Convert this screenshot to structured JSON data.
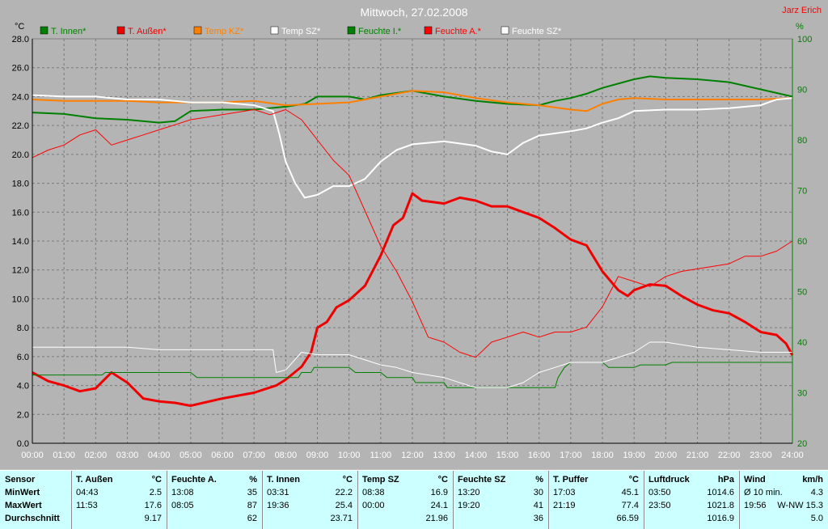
{
  "chart_data": {
    "type": "line",
    "title": "Mittwoch, 27.02.2008",
    "author": "Jarz Erich",
    "y_left_unit": "°C",
    "y_right_unit": "%",
    "ylim_left": [
      0,
      28
    ],
    "ylim_right": [
      20,
      100
    ],
    "y_left_ticks": [
      "0.0",
      "2.0",
      "4.0",
      "6.0",
      "8.0",
      "10.0",
      "12.0",
      "14.0",
      "16.0",
      "18.0",
      "20.0",
      "22.0",
      "24.0",
      "26.0",
      "28.0"
    ],
    "y_right_ticks": [
      "20",
      "30",
      "40",
      "50",
      "60",
      "70",
      "80",
      "90",
      "100"
    ],
    "x_ticks": [
      "00:00",
      "01:00",
      "02:00",
      "03:00",
      "04:00",
      "05:00",
      "06:00",
      "07:00",
      "08:00",
      "09:00",
      "10:00",
      "11:00",
      "12:00",
      "13:00",
      "14:00",
      "15:00",
      "16:00",
      "17:00",
      "18:00",
      "19:00",
      "20:00",
      "21:00",
      "22:00",
      "23:00",
      "24:00"
    ],
    "grid": true,
    "legend_placement": "top",
    "series": [
      {
        "name": "T. Innen*",
        "axis": "left",
        "color": "#008000",
        "width": 2,
        "points": [
          [
            0,
            22.9
          ],
          [
            1,
            22.8
          ],
          [
            2,
            22.5
          ],
          [
            3,
            22.4
          ],
          [
            4,
            22.2
          ],
          [
            4.5,
            22.3
          ],
          [
            5,
            23.0
          ],
          [
            6,
            23.1
          ],
          [
            7,
            23.1
          ],
          [
            8,
            23.3
          ],
          [
            8.6,
            23.5
          ],
          [
            9,
            24.0
          ],
          [
            10,
            24.0
          ],
          [
            10.5,
            23.8
          ],
          [
            11,
            24.1
          ],
          [
            12,
            24.4
          ],
          [
            13,
            24.0
          ],
          [
            14,
            23.7
          ],
          [
            15,
            23.5
          ],
          [
            16,
            23.4
          ],
          [
            16.5,
            23.7
          ],
          [
            17,
            23.9
          ],
          [
            17.5,
            24.2
          ],
          [
            18,
            24.6
          ],
          [
            19,
            25.2
          ],
          [
            19.5,
            25.4
          ],
          [
            20,
            25.3
          ],
          [
            21,
            25.2
          ],
          [
            22,
            25.0
          ],
          [
            23,
            24.5
          ],
          [
            24,
            24.0
          ]
        ]
      },
      {
        "name": "T. Außen*",
        "axis": "left",
        "color": "#ee0000",
        "width": 3,
        "points": [
          [
            0,
            4.9
          ],
          [
            0.5,
            4.3
          ],
          [
            1,
            4.0
          ],
          [
            1.5,
            3.6
          ],
          [
            2,
            3.8
          ],
          [
            2.5,
            4.9
          ],
          [
            3,
            4.2
          ],
          [
            3.5,
            3.1
          ],
          [
            4,
            2.9
          ],
          [
            4.5,
            2.8
          ],
          [
            5,
            2.6
          ],
          [
            6,
            3.1
          ],
          [
            7,
            3.5
          ],
          [
            7.7,
            4.0
          ],
          [
            8,
            4.4
          ],
          [
            8.5,
            5.3
          ],
          [
            8.8,
            6.3
          ],
          [
            9,
            8.0
          ],
          [
            9.3,
            8.4
          ],
          [
            9.6,
            9.4
          ],
          [
            10,
            9.9
          ],
          [
            10.5,
            10.9
          ],
          [
            11,
            13.0
          ],
          [
            11.4,
            15.1
          ],
          [
            11.7,
            15.6
          ],
          [
            12,
            17.3
          ],
          [
            12.3,
            16.8
          ],
          [
            13,
            16.6
          ],
          [
            13.5,
            17.0
          ],
          [
            14,
            16.8
          ],
          [
            14.5,
            16.4
          ],
          [
            15,
            16.4
          ],
          [
            15.5,
            16.0
          ],
          [
            16,
            15.6
          ],
          [
            16.5,
            14.9
          ],
          [
            17,
            14.1
          ],
          [
            17.5,
            13.7
          ],
          [
            18,
            11.9
          ],
          [
            18.5,
            10.6
          ],
          [
            18.8,
            10.2
          ],
          [
            19,
            10.6
          ],
          [
            19.5,
            11.0
          ],
          [
            20,
            10.9
          ],
          [
            20.5,
            10.2
          ],
          [
            21,
            9.6
          ],
          [
            21.5,
            9.2
          ],
          [
            22,
            9.0
          ],
          [
            22.5,
            8.4
          ],
          [
            23,
            7.7
          ],
          [
            23.5,
            7.5
          ],
          [
            23.8,
            6.9
          ],
          [
            24,
            6.1
          ]
        ]
      },
      {
        "name": "Temp KZ*",
        "axis": "left",
        "color": "#ff8000",
        "width": 2,
        "points": [
          [
            0,
            23.8
          ],
          [
            1,
            23.7
          ],
          [
            2,
            23.7
          ],
          [
            3,
            23.7
          ],
          [
            4,
            23.6
          ],
          [
            5,
            23.6
          ],
          [
            6,
            23.6
          ],
          [
            7,
            23.7
          ],
          [
            8,
            23.4
          ],
          [
            9,
            23.5
          ],
          [
            10,
            23.6
          ],
          [
            11,
            24.0
          ],
          [
            12,
            24.4
          ],
          [
            13,
            24.3
          ],
          [
            14,
            23.9
          ],
          [
            15,
            23.6
          ],
          [
            16,
            23.4
          ],
          [
            17,
            23.1
          ],
          [
            17.5,
            23.0
          ],
          [
            18,
            23.5
          ],
          [
            18.5,
            23.8
          ],
          [
            19,
            23.9
          ],
          [
            20,
            23.8
          ],
          [
            21,
            23.8
          ],
          [
            22,
            23.8
          ],
          [
            23,
            23.8
          ],
          [
            24,
            23.9
          ]
        ]
      },
      {
        "name": "Temp SZ*",
        "axis": "left",
        "color": "#ffffff",
        "width": 2,
        "points": [
          [
            0,
            24.1
          ],
          [
            1,
            24.0
          ],
          [
            2,
            24.0
          ],
          [
            3,
            23.8
          ],
          [
            4,
            23.8
          ],
          [
            5,
            23.6
          ],
          [
            6,
            23.6
          ],
          [
            7,
            23.4
          ],
          [
            7.6,
            23.0
          ],
          [
            7.8,
            21.4
          ],
          [
            8,
            19.5
          ],
          [
            8.3,
            18.0
          ],
          [
            8.6,
            17.0
          ],
          [
            9,
            17.2
          ],
          [
            9.5,
            17.8
          ],
          [
            10,
            17.8
          ],
          [
            10.5,
            18.3
          ],
          [
            11,
            19.5
          ],
          [
            11.5,
            20.3
          ],
          [
            12,
            20.7
          ],
          [
            13,
            20.9
          ],
          [
            14,
            20.6
          ],
          [
            14.5,
            20.2
          ],
          [
            15,
            20.0
          ],
          [
            15.5,
            20.8
          ],
          [
            16,
            21.3
          ],
          [
            17,
            21.6
          ],
          [
            17.5,
            21.8
          ],
          [
            18,
            22.2
          ],
          [
            18.5,
            22.5
          ],
          [
            19,
            23.0
          ],
          [
            20,
            23.1
          ],
          [
            21,
            23.1
          ],
          [
            22,
            23.2
          ],
          [
            23,
            23.4
          ],
          [
            23.5,
            23.8
          ],
          [
            24,
            23.9
          ]
        ]
      },
      {
        "name": "Feuchte I.*",
        "axis": "right",
        "color": "#008000",
        "width": 1,
        "points": [
          [
            0,
            33.5
          ],
          [
            2.2,
            33.5
          ],
          [
            2.3,
            34.0
          ],
          [
            5,
            34.0
          ],
          [
            5.2,
            33
          ],
          [
            8.4,
            33
          ],
          [
            8.5,
            34
          ],
          [
            8.8,
            34
          ],
          [
            8.9,
            35
          ],
          [
            10,
            35
          ],
          [
            10.2,
            34
          ],
          [
            11,
            34
          ],
          [
            11.2,
            33
          ],
          [
            12,
            33
          ],
          [
            12.1,
            32
          ],
          [
            13,
            32
          ],
          [
            13.1,
            31
          ],
          [
            16.5,
            31
          ],
          [
            16.6,
            33
          ],
          [
            16.8,
            35
          ],
          [
            17,
            36
          ],
          [
            18,
            36
          ],
          [
            18.2,
            35
          ],
          [
            19,
            35
          ],
          [
            19.2,
            35.5
          ],
          [
            20,
            35.5
          ],
          [
            20.2,
            36
          ],
          [
            24,
            36
          ],
          [
            24,
            35
          ]
        ]
      },
      {
        "name": "Feuchte A.*",
        "axis": "right",
        "color": "#ff0000",
        "width": 1,
        "points": [
          [
            0,
            76.5
          ],
          [
            0.5,
            78
          ],
          [
            1,
            79
          ],
          [
            1.5,
            81
          ],
          [
            2,
            82
          ],
          [
            2.5,
            79
          ],
          [
            3,
            80
          ],
          [
            3.5,
            81
          ],
          [
            4,
            82
          ],
          [
            4.5,
            83
          ],
          [
            5,
            84
          ],
          [
            6,
            85
          ],
          [
            7,
            86
          ],
          [
            7.5,
            85
          ],
          [
            8,
            86
          ],
          [
            8.5,
            84
          ],
          [
            9,
            80
          ],
          [
            9.5,
            76
          ],
          [
            10,
            73
          ],
          [
            10.5,
            66
          ],
          [
            11,
            59
          ],
          [
            11.5,
            54
          ],
          [
            12,
            48
          ],
          [
            12.5,
            41
          ],
          [
            13,
            40
          ],
          [
            13.5,
            38
          ],
          [
            14,
            37
          ],
          [
            14.5,
            40
          ],
          [
            15,
            41
          ],
          [
            15.5,
            42
          ],
          [
            16,
            41
          ],
          [
            16.5,
            42
          ],
          [
            17,
            42
          ],
          [
            17.5,
            43
          ],
          [
            18,
            47
          ],
          [
            18.5,
            53
          ],
          [
            19,
            52
          ],
          [
            19.5,
            51
          ],
          [
            20,
            53
          ],
          [
            20.5,
            54
          ],
          [
            21,
            54.5
          ],
          [
            21.5,
            55
          ],
          [
            22,
            55.5
          ],
          [
            22.5,
            57
          ],
          [
            23,
            57
          ],
          [
            23.5,
            58
          ],
          [
            24,
            60
          ]
        ]
      },
      {
        "name": "Feuchte SZ*",
        "axis": "right",
        "color": "#ffffff",
        "width": 1,
        "points": [
          [
            0,
            39
          ],
          [
            1,
            39
          ],
          [
            2,
            39
          ],
          [
            3,
            39
          ],
          [
            4,
            38.5
          ],
          [
            5,
            38.5
          ],
          [
            6,
            38.5
          ],
          [
            7,
            38.5
          ],
          [
            7.6,
            38.5
          ],
          [
            7.7,
            34
          ],
          [
            8,
            34.5
          ],
          [
            8.5,
            38
          ],
          [
            9,
            37.5
          ],
          [
            10,
            37.5
          ],
          [
            10.5,
            36.5
          ],
          [
            11,
            35.5
          ],
          [
            11.5,
            35
          ],
          [
            12,
            34
          ],
          [
            13,
            33
          ],
          [
            14,
            31
          ],
          [
            15,
            31
          ],
          [
            15.5,
            32
          ],
          [
            16,
            34
          ],
          [
            16.5,
            35
          ],
          [
            17,
            36
          ],
          [
            17.5,
            36
          ],
          [
            18,
            36
          ],
          [
            18.5,
            37
          ],
          [
            19,
            38
          ],
          [
            19.5,
            40
          ],
          [
            20,
            40
          ],
          [
            21,
            39
          ],
          [
            22,
            38.5
          ],
          [
            23,
            38
          ],
          [
            24,
            38
          ]
        ]
      }
    ]
  },
  "stats": {
    "label_col": {
      "header": "Sensor",
      "rows": [
        "MinWert",
        "MaxWert",
        "Durchschnitt"
      ]
    },
    "columns": [
      {
        "name": "T. Außen",
        "unit": "°C",
        "min_time": "04:43",
        "min_val": "2.5",
        "max_time": "11:53",
        "max_val": "17.6",
        "avg": "9.17"
      },
      {
        "name": "Feuchte A.",
        "unit": "%",
        "min_time": "13:08",
        "min_val": "35",
        "max_time": "08:05",
        "max_val": "87",
        "avg": "62"
      },
      {
        "name": "T. Innen",
        "unit": "°C",
        "min_time": "03:31",
        "min_val": "22.2",
        "max_time": "19:36",
        "max_val": "25.4",
        "avg": "23.71"
      },
      {
        "name": "Temp SZ",
        "unit": "°C",
        "min_time": "08:38",
        "min_val": "16.9",
        "max_time": "00:00",
        "max_val": "24.1",
        "avg": "21.96"
      },
      {
        "name": "Feuchte SZ",
        "unit": "%",
        "min_time": "13:20",
        "min_val": "30",
        "max_time": "19:20",
        "max_val": "41",
        "avg": "36"
      },
      {
        "name": "T. Puffer",
        "unit": "°C",
        "min_time": "17:03",
        "min_val": "45.1",
        "max_time": "21:19",
        "max_val": "77.4",
        "avg": "66.59"
      },
      {
        "name": "Luftdruck",
        "unit": "hPa",
        "min_time": "03:50",
        "min_val": "1014.6",
        "max_time": "23:50",
        "max_val": "1021.8",
        "avg": "1016.9"
      },
      {
        "name": "Wind",
        "unit": "km/h",
        "min_time": "Ø 10 min.",
        "min_val": "4.3",
        "max_time": "19:56",
        "max_val": "W-NW 15.3",
        "avg": "5.0"
      }
    ]
  }
}
